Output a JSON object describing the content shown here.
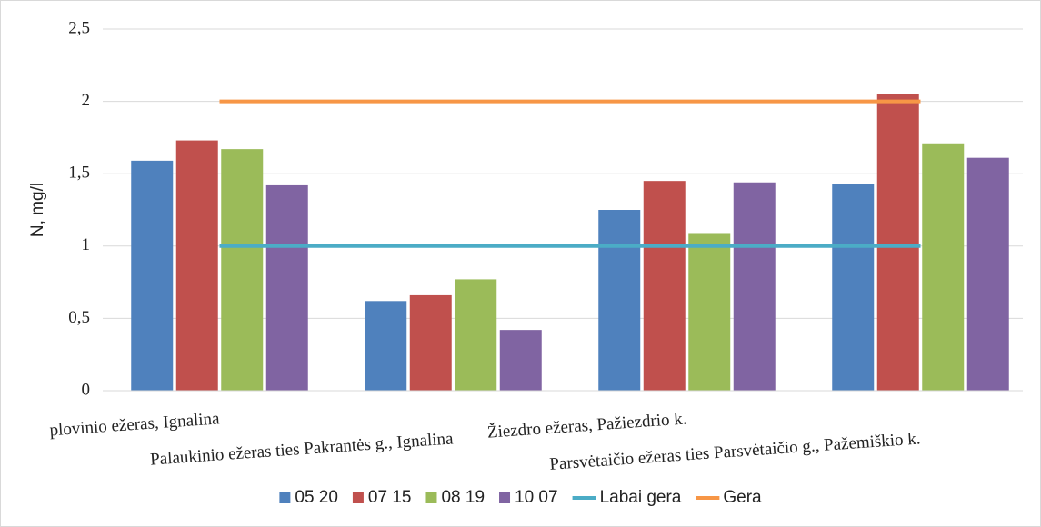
{
  "chart_data": {
    "type": "bar",
    "y_label": "N, mg/l",
    "categories": [
      "plovinio ežeras, Ignalina",
      "Palaukinio ežeras ties Pakrantės g., Ignalina",
      "Žiezdro ežeras, Pažiezdrio k.",
      "Parsvėtaičio ežeras ties Parsvėtaičio g., Pažemiškio k."
    ],
    "series": [
      {
        "name": "05 20",
        "color": "#4f81bd",
        "values": [
          1.59,
          0.62,
          1.25,
          1.43
        ]
      },
      {
        "name": "07 15",
        "color": "#c0504d",
        "values": [
          1.73,
          0.66,
          1.45,
          2.05
        ]
      },
      {
        "name": "08 19",
        "color": "#9bbb59",
        "values": [
          1.67,
          0.77,
          1.09,
          1.71
        ]
      },
      {
        "name": "10 07",
        "color": "#8064a2",
        "values": [
          1.42,
          0.42,
          1.44,
          1.61
        ]
      },
      {
        "name": "Labai gera",
        "type": "line",
        "color": "#4bacc6",
        "values": [
          1,
          1,
          1,
          1
        ]
      },
      {
        "name": "Gera",
        "type": "line",
        "color": "#f79646",
        "values": [
          2,
          2,
          2,
          2
        ]
      }
    ],
    "ylim": [
      0,
      2.5
    ],
    "yticks": [
      0,
      {
        "value": 0.5,
        "label": "0,5"
      },
      1,
      {
        "value": 1.5,
        "label": "1,5"
      },
      2,
      {
        "value": 2.5,
        "label": "2,5"
      }
    ],
    "grid": true,
    "legend": "bottom"
  }
}
